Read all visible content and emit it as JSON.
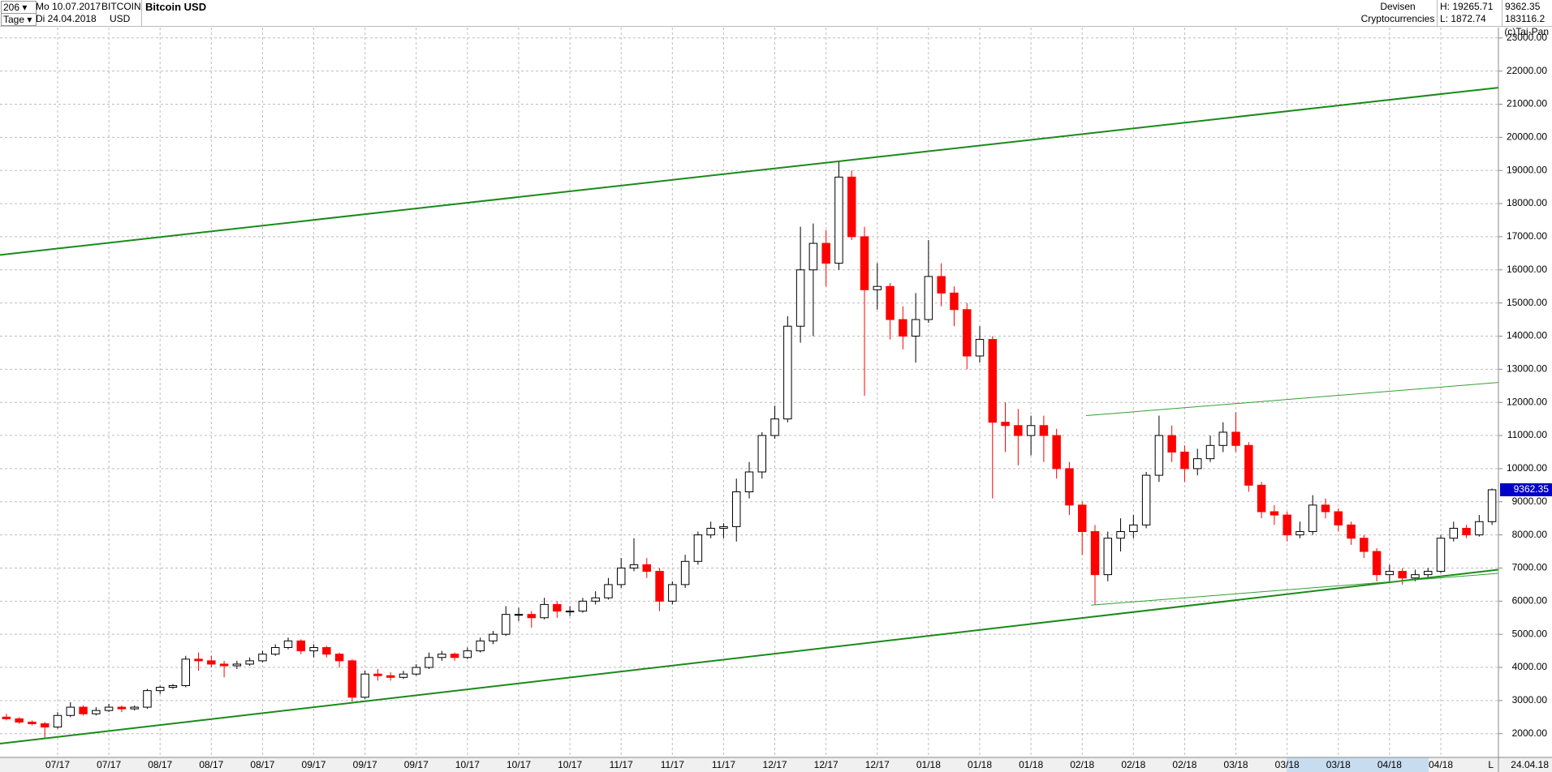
{
  "header": {
    "count": "206",
    "start_day": "Mo 10.07.2017",
    "symbol": "BITCOIN",
    "currency": "USD",
    "period": "Tage",
    "end_day": "Di 24.04.2018",
    "name": "Bitcoin USD",
    "group": "Devisen",
    "sector": "Cryptocurrencies",
    "high": "H: 19265.71",
    "low": "L: 1872.74",
    "volume": "183116.2",
    "copyright": "(c)Tai-Pan",
    "end_date": "24.04.18",
    "scale_mode": "L"
  },
  "chart_data": {
    "type": "candlestick",
    "up_color": "#ffffff",
    "down_color": "#ff0000",
    "outline_color": "#000000",
    "grid": true,
    "xlim": [
      -0.5,
      116.5
    ],
    "ylim": [
      1284,
      23313
    ],
    "yticks": [
      {
        "value": 2000,
        "label": "2000.00"
      },
      {
        "value": 3000,
        "label": "3000.00"
      },
      {
        "value": 4000,
        "label": "4000.00"
      },
      {
        "value": 5000,
        "label": "5000.00"
      },
      {
        "value": 6000,
        "label": "6000.00"
      },
      {
        "value": 7000,
        "label": "7000.00"
      },
      {
        "value": 8000,
        "label": "8000.00"
      },
      {
        "value": 9000,
        "label": "9000.00"
      },
      {
        "value": 10000,
        "label": "10000.00"
      },
      {
        "value": 11000,
        "label": "11000.00"
      },
      {
        "value": 12000,
        "label": "12000.00"
      },
      {
        "value": 13000,
        "label": "13000.00"
      },
      {
        "value": 14000,
        "label": "14000.00"
      },
      {
        "value": 15000,
        "label": "15000.00"
      },
      {
        "value": 16000,
        "label": "16000.00"
      },
      {
        "value": 17000,
        "label": "17000.00"
      },
      {
        "value": 18000,
        "label": "18000.00"
      },
      {
        "value": 19000,
        "label": "19000.00"
      },
      {
        "value": 20000,
        "label": "20000.00"
      },
      {
        "value": 21000,
        "label": "21000.00"
      },
      {
        "value": 22000,
        "label": "22000.00"
      },
      {
        "value": 23000,
        "label": "23000.00"
      }
    ],
    "categories": [
      null,
      null,
      null,
      null,
      "07/17",
      null,
      null,
      null,
      "07/17",
      null,
      null,
      null,
      "08/17",
      null,
      null,
      null,
      "08/17",
      null,
      null,
      null,
      "08/17",
      null,
      null,
      null,
      "09/17",
      null,
      null,
      null,
      "09/17",
      null,
      null,
      null,
      "09/17",
      null,
      null,
      null,
      "10/17",
      null,
      null,
      null,
      "10/17",
      null,
      null,
      null,
      "10/17",
      null,
      null,
      null,
      "11/17",
      null,
      null,
      null,
      "11/17",
      null,
      null,
      null,
      "11/17",
      null,
      null,
      null,
      "12/17",
      null,
      null,
      null,
      "12/17",
      null,
      null,
      null,
      "12/17",
      null,
      null,
      null,
      "01/18",
      null,
      null,
      null,
      "01/18",
      null,
      null,
      null,
      "01/18",
      null,
      null,
      null,
      "02/18",
      null,
      null,
      null,
      "02/18",
      null,
      null,
      null,
      "02/18",
      null,
      null,
      null,
      "03/18",
      null,
      null,
      null,
      "03/18",
      null,
      null,
      null,
      "03/18",
      null,
      null,
      null,
      "04/18",
      null,
      null,
      null,
      "04/18",
      null,
      null,
      null,
      null
    ],
    "ohlc": [
      [
        2500,
        2600,
        2400,
        2450
      ],
      [
        2450,
        2500,
        2300,
        2350
      ],
      [
        2350,
        2400,
        2250,
        2300
      ],
      [
        2300,
        2350,
        1872.74,
        2200
      ],
      [
        2200,
        2650,
        2150,
        2550
      ],
      [
        2550,
        2950,
        2500,
        2800
      ],
      [
        2800,
        2850,
        2550,
        2600
      ],
      [
        2600,
        2800,
        2550,
        2700
      ],
      [
        2700,
        2900,
        2650,
        2800
      ],
      [
        2800,
        2850,
        2650,
        2750
      ],
      [
        2750,
        2850,
        2700,
        2800
      ],
      [
        2800,
        3350,
        2750,
        3300
      ],
      [
        3300,
        3450,
        3200,
        3400
      ],
      [
        3400,
        3500,
        3350,
        3450
      ],
      [
        3450,
        4350,
        3400,
        4250
      ],
      [
        4250,
        4450,
        3900,
        4200
      ],
      [
        4200,
        4350,
        4000,
        4100
      ],
      [
        4100,
        4200,
        3700,
        4050
      ],
      [
        4050,
        4200,
        3950,
        4100
      ],
      [
        4100,
        4300,
        4050,
        4200
      ],
      [
        4200,
        4500,
        4150,
        4400
      ],
      [
        4400,
        4700,
        4350,
        4600
      ],
      [
        4600,
        4900,
        4550,
        4800
      ],
      [
        4800,
        4850,
        4400,
        4500
      ],
      [
        4500,
        4700,
        4300,
        4600
      ],
      [
        4600,
        4650,
        4300,
        4400
      ],
      [
        4400,
        4450,
        4000,
        4200
      ],
      [
        4200,
        4250,
        2970,
        3100
      ],
      [
        3100,
        3900,
        3050,
        3800
      ],
      [
        3800,
        3950,
        3600,
        3750
      ],
      [
        3750,
        3850,
        3600,
        3700
      ],
      [
        3700,
        3900,
        3650,
        3800
      ],
      [
        3800,
        4100,
        3750,
        4000
      ],
      [
        4000,
        4450,
        3950,
        4300
      ],
      [
        4300,
        4500,
        4200,
        4400
      ],
      [
        4400,
        4450,
        4200,
        4300
      ],
      [
        4300,
        4600,
        4250,
        4500
      ],
      [
        4500,
        4900,
        4450,
        4800
      ],
      [
        4800,
        5100,
        4700,
        5000
      ],
      [
        5000,
        5850,
        4950,
        5600
      ],
      [
        5600,
        5800,
        5400,
        5600
      ],
      [
        5600,
        5700,
        5200,
        5500
      ],
      [
        5500,
        6100,
        5450,
        5900
      ],
      [
        5900,
        6000,
        5500,
        5700
      ],
      [
        5700,
        5850,
        5550,
        5700
      ],
      [
        5700,
        6100,
        5650,
        6000
      ],
      [
        6000,
        6300,
        5900,
        6100
      ],
      [
        6100,
        6700,
        6050,
        6500
      ],
      [
        6500,
        7300,
        6400,
        7000
      ],
      [
        7000,
        7900,
        6900,
        7100
      ],
      [
        7100,
        7300,
        6700,
        6900
      ],
      [
        6900,
        7000,
        5700,
        6000
      ],
      [
        6000,
        6600,
        5900,
        6500
      ],
      [
        6500,
        7400,
        6400,
        7200
      ],
      [
        7200,
        8100,
        7100,
        8000
      ],
      [
        8000,
        8400,
        7900,
        8200
      ],
      [
        8200,
        8350,
        7900,
        8250
      ],
      [
        8250,
        9700,
        7800,
        9300
      ],
      [
        9300,
        10200,
        9100,
        9900
      ],
      [
        9900,
        11100,
        9700,
        11000
      ],
      [
        11000,
        11900,
        10900,
        11500
      ],
      [
        11500,
        14600,
        11400,
        14300
      ],
      [
        14300,
        17300,
        13800,
        16000
      ],
      [
        16000,
        17400,
        14000,
        16800
      ],
      [
        16800,
        17200,
        15500,
        16200
      ],
      [
        16200,
        19265.71,
        16000,
        18800
      ],
      [
        18800,
        19000,
        16900,
        17000
      ],
      [
        17000,
        17300,
        12200,
        15400
      ],
      [
        15400,
        16200,
        14800,
        15500
      ],
      [
        15500,
        15600,
        13900,
        14500
      ],
      [
        14500,
        14900,
        13600,
        14000
      ],
      [
        14000,
        15300,
        13200,
        14500
      ],
      [
        14500,
        16900,
        14400,
        15800
      ],
      [
        15800,
        16200,
        14900,
        15300
      ],
      [
        15300,
        15500,
        14300,
        14800
      ],
      [
        14800,
        15000,
        13000,
        13400
      ],
      [
        13400,
        14300,
        13200,
        13900
      ],
      [
        13900,
        14000,
        9100,
        11400
      ],
      [
        11400,
        12000,
        10500,
        11300
      ],
      [
        11300,
        11800,
        10100,
        11000
      ],
      [
        11000,
        11600,
        10400,
        11300
      ],
      [
        11300,
        11600,
        10200,
        11000
      ],
      [
        11000,
        11200,
        9700,
        10000
      ],
      [
        10000,
        10200,
        8600,
        8900
      ],
      [
        8900,
        9000,
        7400,
        8100
      ],
      [
        8100,
        8300,
        5900,
        6800
      ],
      [
        6800,
        8100,
        6600,
        7900
      ],
      [
        7900,
        8500,
        7500,
        8100
      ],
      [
        8100,
        8600,
        7900,
        8300
      ],
      [
        8300,
        9900,
        8200,
        9800
      ],
      [
        9800,
        11600,
        9600,
        11000
      ],
      [
        11000,
        11300,
        10200,
        10500
      ],
      [
        10500,
        10700,
        9600,
        10000
      ],
      [
        10000,
        10600,
        9800,
        10300
      ],
      [
        10300,
        11000,
        10200,
        10700
      ],
      [
        10700,
        11400,
        10500,
        11100
      ],
      [
        11100,
        11700,
        10500,
        10700
      ],
      [
        10700,
        10800,
        9300,
        9500
      ],
      [
        9500,
        9600,
        8500,
        8700
      ],
      [
        8700,
        8900,
        8300,
        8600
      ],
      [
        8600,
        8700,
        7800,
        8000
      ],
      [
        8000,
        8400,
        7900,
        8100
      ],
      [
        8100,
        9200,
        8000,
        8900
      ],
      [
        8900,
        9100,
        8500,
        8700
      ],
      [
        8700,
        8800,
        8100,
        8300
      ],
      [
        8300,
        8400,
        7700,
        7900
      ],
      [
        7900,
        8000,
        7300,
        7500
      ],
      [
        7500,
        7600,
        6600,
        6800
      ],
      [
        6800,
        7100,
        6600,
        6900
      ],
      [
        6900,
        7000,
        6500,
        6700
      ],
      [
        6700,
        6950,
        6600,
        6800
      ],
      [
        6800,
        7000,
        6700,
        6900
      ],
      [
        6900,
        8000,
        6850,
        7900
      ],
      [
        7900,
        8400,
        7800,
        8200
      ],
      [
        8200,
        8300,
        7900,
        8000
      ],
      [
        8000,
        8600,
        7950,
        8400
      ],
      [
        8400,
        9400,
        8300,
        9362.35
      ]
    ],
    "lines": [
      {
        "x": [
          -0.5,
          116.5
        ],
        "y": [
          16450,
          21500
        ],
        "color": "#1a8a1a",
        "width": 2
      },
      {
        "x": [
          -0.5,
          116.5
        ],
        "y": [
          1700,
          6950
        ],
        "color": "#1a8a1a",
        "width": 2
      },
      {
        "x": [
          84.3,
          116.5
        ],
        "y": [
          11600,
          12600
        ],
        "color": "#33a033",
        "width": 1
      },
      {
        "x": [
          84.7,
          116.5
        ],
        "y": [
          5880,
          6840
        ],
        "color": "#33a033",
        "width": 1
      }
    ]
  }
}
